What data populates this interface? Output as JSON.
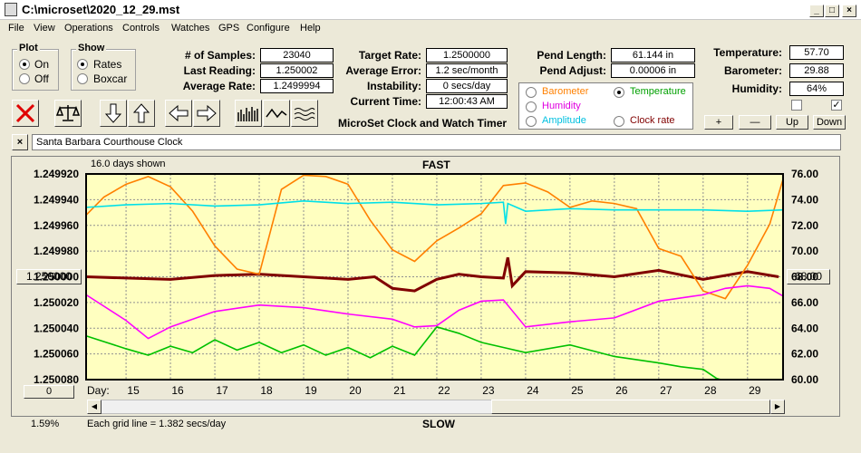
{
  "window": {
    "title": "C:\\microset\\2020_12_29.mst",
    "min": "_",
    "max": "□",
    "close": "×"
  },
  "menu": [
    "File",
    "View",
    "Operations",
    "Controls",
    "Watches",
    "GPS",
    "Configure",
    "Help"
  ],
  "plot_group": {
    "title": "Plot",
    "options": [
      "On",
      "Off"
    ],
    "selected": "On"
  },
  "show_group": {
    "title": "Show",
    "options": [
      "Rates",
      "Boxcar"
    ],
    "selected": "Rates"
  },
  "stats": [
    {
      "label": "# of Samples:",
      "value": "23040"
    },
    {
      "label": "Last Reading:",
      "value": "1.250002"
    },
    {
      "label": "Average Rate:",
      "value": "1.2499994"
    }
  ],
  "rates": [
    {
      "label": "Target Rate:",
      "value": "1.2500000"
    },
    {
      "label": "Average Error:",
      "value": "1.2 sec/month"
    },
    {
      "label": "Instability:",
      "value": "0 secs/day"
    },
    {
      "label": "Current Time:",
      "value": "12:00:43 AM"
    }
  ],
  "pend": [
    {
      "label": "Pend Length:",
      "value": "61.144 in"
    },
    {
      "label": "Pend Adjust:",
      "value": "0.00006 in"
    }
  ],
  "env": [
    {
      "label": "Temperature:",
      "value": "57.70"
    },
    {
      "label": "Barometer:",
      "value": "29.88"
    },
    {
      "label": "Humidity:",
      "value": "64%"
    }
  ],
  "app_name": "MicroSet Clock and Watch Timer",
  "legend": {
    "barometer": "Barometer",
    "temperature": "Temperature",
    "humidity": "Humidity",
    "amplitude": "Amplitude",
    "clock_rate": "Clock rate",
    "selected": "Temperature"
  },
  "buttons": {
    "plus": "+",
    "minus": "—",
    "up": "Up",
    "down": "Down",
    "close_x": "×",
    "left_value": "1.250000",
    "right_value": "68.00",
    "zero": "0"
  },
  "clock_name": "Santa Barbara Courthouse Clock",
  "plot": {
    "days_shown": "16.0 days shown",
    "fast": "FAST",
    "slow": "SLOW",
    "day_label": "Day:",
    "grid_note": "Each grid line = 1.382 secs/day",
    "percent": "1.59%"
  },
  "colors": {
    "plot_bg": "#ffffc0",
    "clock_rate": "#800000",
    "temperature": "#ff8000",
    "barometer": "#00e0e8",
    "humidity": "#ff00ff",
    "green": "#00c000"
  },
  "chart_data": {
    "type": "line",
    "x_range": [
      14.1,
      29.8
    ],
    "x_ticks": [
      15,
      16,
      17,
      18,
      19,
      20,
      21,
      22,
      23,
      24,
      25,
      26,
      27,
      28,
      29
    ],
    "left_axis": {
      "ticks": [
        "1.249920",
        "1.249940",
        "1.249960",
        "1.249980",
        "1.250000",
        "1.250020",
        "1.250040",
        "1.250060",
        "1.250080"
      ],
      "range": [
        1.24992,
        1.25008
      ],
      "inverted": true
    },
    "right_axis": {
      "ticks": [
        "76.00",
        "74.00",
        "72.00",
        "70.00",
        "68.00",
        "66.00",
        "64.00",
        "62.00",
        "60.00"
      ],
      "range": [
        60,
        76
      ]
    },
    "series": [
      {
        "color": "#800000",
        "x": [
          14.1,
          15,
          16,
          17,
          18,
          19,
          20,
          20.6,
          21,
          21.5,
          22,
          22.5,
          23,
          23.5,
          23.6,
          23.7,
          24,
          25,
          26,
          27,
          28,
          29,
          29.7
        ],
        "y": [
          1.25,
          1.250001,
          1.250002,
          1.249999,
          1.249998,
          1.25,
          1.250002,
          1.25,
          1.250009,
          1.250011,
          1.250002,
          1.249998,
          1.25,
          1.250001,
          1.249985,
          1.250007,
          1.249996,
          1.249997,
          1.25,
          1.249995,
          1.250002,
          1.249996,
          1.25
        ]
      },
      {
        "color": "#ff8000",
        "x": [
          14.1,
          14.5,
          15,
          15.5,
          16,
          16.5,
          17,
          17.5,
          18,
          18.5,
          19,
          19.5,
          20,
          20.5,
          21,
          21.5,
          22,
          22.5,
          23,
          23.5,
          24,
          24.5,
          25,
          25.5,
          26,
          26.5,
          27,
          27.5,
          28,
          28.5,
          29,
          29.5,
          29.8
        ],
        "y": [
          72.8,
          74.2,
          75.2,
          75.8,
          75.0,
          73.1,
          70.4,
          68.6,
          68.2,
          74.8,
          75.9,
          75.8,
          75.2,
          72.4,
          70.1,
          69.2,
          70.8,
          71.8,
          72.9,
          75.1,
          75.3,
          74.6,
          73.4,
          73.9,
          73.7,
          73.3,
          70.2,
          69.6,
          66.9,
          66.3,
          68.9,
          72.1,
          75.6
        ]
      },
      {
        "color": "#00e0e8",
        "x": [
          14.1,
          15,
          16,
          17,
          18,
          19,
          20,
          21,
          22,
          23,
          23.5,
          23.55,
          23.6,
          24,
          25,
          26,
          27,
          28,
          29,
          29.8
        ],
        "y": [
          73.4,
          73.6,
          73.7,
          73.5,
          73.6,
          73.9,
          73.7,
          73.8,
          73.6,
          73.7,
          73.8,
          72.1,
          73.7,
          73.1,
          73.3,
          73.2,
          73.2,
          73.2,
          73.1,
          73.2
        ]
      },
      {
        "color": "#ff00ff",
        "x": [
          14.1,
          15,
          15.5,
          16,
          17,
          18,
          19,
          20,
          21,
          21.5,
          22,
          22.5,
          23,
          23.5,
          24,
          25,
          26,
          27,
          28,
          28.5,
          29,
          29.5,
          29.8
        ],
        "y": [
          66.6,
          64.6,
          63.2,
          64.1,
          65.3,
          65.8,
          65.6,
          65.1,
          64.7,
          64.1,
          64.2,
          65.4,
          66.1,
          66.2,
          64.1,
          64.5,
          64.8,
          66.1,
          66.6,
          67.1,
          67.3,
          67.1,
          66.5
        ]
      },
      {
        "color": "#00c000",
        "x": [
          14.1,
          15,
          15.5,
          16,
          16.5,
          17,
          17.5,
          18,
          18.5,
          19,
          19.5,
          20,
          20.5,
          21,
          21.5,
          22,
          22.5,
          23,
          23.5,
          24,
          25,
          26,
          27,
          27.5,
          28,
          28.3,
          28.4,
          29.8
        ],
        "y": [
          63.4,
          62.4,
          61.9,
          62.6,
          62.1,
          63.1,
          62.3,
          62.9,
          62.1,
          62.7,
          61.9,
          62.5,
          61.7,
          62.6,
          61.9,
          64.1,
          63.6,
          62.9,
          62.5,
          62.1,
          62.7,
          61.8,
          61.3,
          61.0,
          60.8,
          60.1,
          60,
          60
        ]
      }
    ]
  }
}
